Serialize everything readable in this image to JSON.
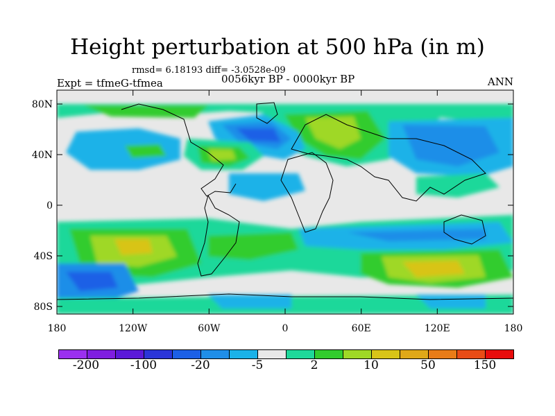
{
  "header": {
    "title": "Height perturbation at 500 hPa (in m)",
    "stats": "rmsd= 6.18193 diff= -3.0528e-09",
    "experiment": "Expt = tfmeG-tfmea",
    "period": "0056kyr BP - 0000kyr BP",
    "season": "ANN"
  },
  "axes": {
    "lat_labels": [
      "80N",
      "40N",
      "0",
      "40S",
      "80S"
    ],
    "lon_labels": [
      "180",
      "120W",
      "60W",
      "0",
      "60E",
      "120E",
      "180"
    ]
  },
  "colorbar": {
    "colors": [
      "#9b30ef",
      "#7f1ee0",
      "#5b19d8",
      "#2b35d8",
      "#1c60e6",
      "#1f8ee8",
      "#1bb2e8",
      "#e8e8e8",
      "#1fd89a",
      "#32cc2e",
      "#9fd826",
      "#d8c418",
      "#e0a818",
      "#e87c18",
      "#e84c16",
      "#e80c0c"
    ],
    "labels": [
      "-200",
      "-100",
      "-20",
      "-5",
      "2",
      "10",
      "50",
      "150"
    ]
  },
  "legend_colors": {
    "deep_neg": "#2b35d8",
    "mid_neg": "#1c60e6",
    "neg": "#1f8ee8",
    "light_neg": "#1bb2e8",
    "neutral": "#e8e8e8",
    "pos_teal": "#1fd89a",
    "pos_green": "#32cc2e",
    "pos_lime": "#9fd826",
    "pos_yellow": "#d8c418"
  }
}
